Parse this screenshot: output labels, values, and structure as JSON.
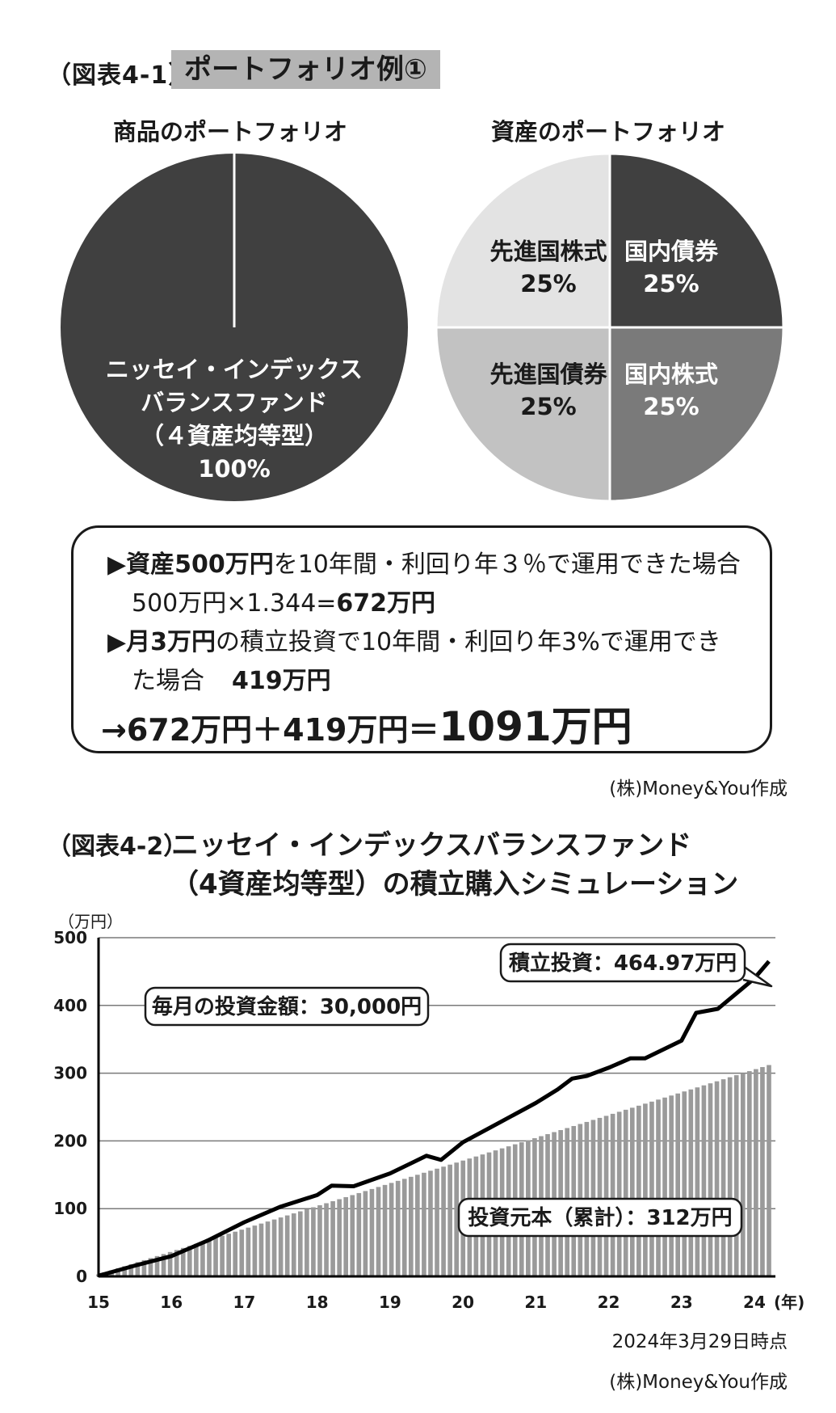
{
  "figure1": {
    "label": "（図表4-1）",
    "title": "ポートフォリオ例①"
  },
  "pie_product": {
    "heading": "商品のポートフォリオ",
    "label_line1": "ニッセイ・インデックス",
    "label_line2": "バランスファンド",
    "label_line3": "（４資産均等型）",
    "label_value": "100%"
  },
  "pie_asset": {
    "heading": "資産のポートフォリオ"
  },
  "chart_data": [
    {
      "type": "pie",
      "title": "商品のポートフォリオ",
      "slices": [
        {
          "label": "ニッセイ・インデックスバランスファンド（４資産均等型）",
          "value": 100,
          "color": "#404040"
        }
      ]
    },
    {
      "type": "pie",
      "title": "資産のポートフォリオ",
      "slices": [
        {
          "label": "国内債券",
          "value": 25,
          "color": "#404040",
          "value_label": "25%"
        },
        {
          "label": "国内株式",
          "value": 25,
          "color": "#7a7a7a",
          "value_label": "25%"
        },
        {
          "label": "先進国債券",
          "value": 25,
          "color": "#c2c2c2",
          "value_label": "25%"
        },
        {
          "label": "先進国株式",
          "value": 25,
          "color": "#e3e3e3",
          "value_label": "25%"
        }
      ]
    },
    {
      "type": "line",
      "title": "",
      "ylabel": "（万円）",
      "xlabel": "(年)",
      "ylim": [
        0,
        500
      ],
      "yticks": [
        "0",
        "100",
        "200",
        "300",
        "400",
        "500"
      ],
      "xticks": [
        "15",
        "16",
        "17",
        "18",
        "19",
        "20",
        "21",
        "22",
        "23",
        "24"
      ],
      "grid": true,
      "series": [
        {
          "name": "積立投資：464.97万円",
          "style": "line",
          "color": "#000000",
          "x": [
            15.0,
            15.5,
            16.0,
            16.5,
            17.0,
            17.5,
            18.0,
            18.2,
            18.5,
            19.0,
            19.5,
            19.7,
            20.0,
            20.5,
            21.0,
            21.3,
            21.5,
            21.7,
            22.0,
            22.3,
            22.5,
            23.0,
            23.2,
            23.5,
            23.8,
            24.0,
            24.2
          ],
          "y": [
            1,
            16,
            30,
            53,
            80,
            103,
            120,
            134,
            133,
            152,
            178,
            172,
            198,
            227,
            256,
            276,
            292,
            296,
            308,
            322,
            322,
            348,
            389,
            395,
            422,
            440,
            465
          ]
        },
        {
          "name": "投資元本（累計）：312万円",
          "style": "bar",
          "color": "#9a9a9a",
          "x_start": 15.0,
          "x_end": 24.2,
          "y_start": 3,
          "y_end": 312,
          "monthly": 3,
          "count": 104
        }
      ],
      "annotations": [
        {
          "text": "毎月の投資金額：30,000円"
        },
        {
          "text": "積立投資：464.97万円"
        },
        {
          "text": "投資元本（累計）：312万円"
        }
      ]
    }
  ],
  "notes": {
    "line1_arrow": "▶",
    "line1_bold": "資産500万円",
    "line1_rest": "を10年間・利回り年３％で運用できた場合",
    "line2_plain": "500万円×1.344=",
    "line2_bold": "672万円",
    "line3_arrow": "▶",
    "line3_bold": "月3万円",
    "line3_rest": "の積立投資で10年間・利回り年3%で運用でき",
    "line4_plain": "た場合",
    "line4_bold": "419万円",
    "result_small": "→672万円＋419万円＝",
    "result_big": "1091万円"
  },
  "credit1": "(株)Money&You作成",
  "figure2": {
    "label": "（図表4-2）",
    "title_line1": "ニッセイ・インデックスバランスファンド",
    "title_line2": "（4資産均等型）の積立購入シミュレーション"
  },
  "chart2_text": {
    "yunit": "（万円）",
    "xunit": "(年)",
    "callout_monthly": "毎月の投資金額：30,000円",
    "callout_total": "積立投資：464.97万円",
    "callout_principal": "投資元本（累計）：312万円"
  },
  "as_of": "2024年3月29日時点",
  "credit2": "(株)Money&You作成"
}
